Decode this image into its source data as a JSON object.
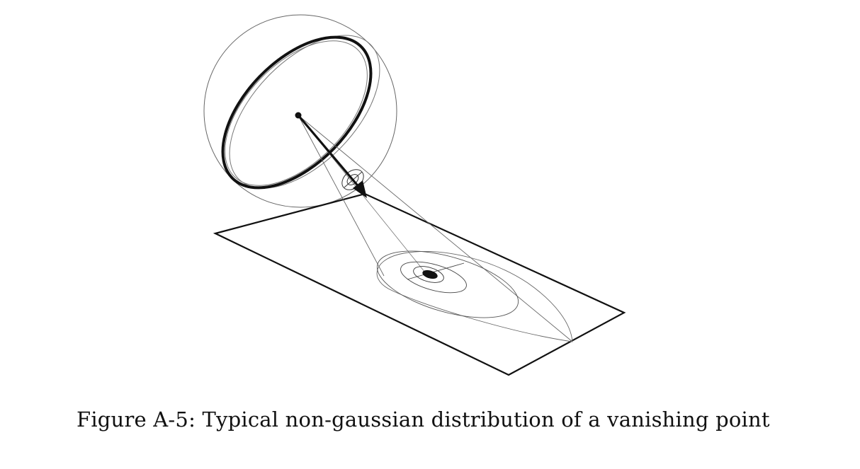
{
  "figure": {
    "caption": "Figure A-5: Typical non-gaussian distribution of a vanishing point",
    "colors": {
      "background": "#ffffff",
      "ink": "#111111",
      "thin_line": "#555555"
    }
  }
}
